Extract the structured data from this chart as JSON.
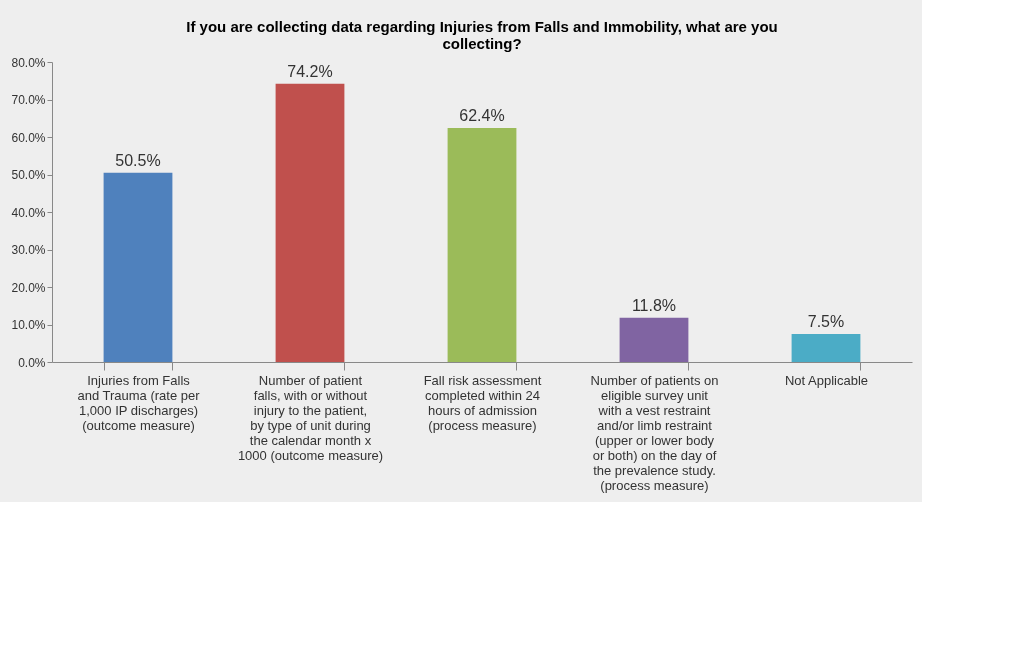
{
  "chart_data": {
    "type": "bar",
    "title": "If you are collecting data regarding Injuries from Falls and Immobility, what are you collecting?",
    "categories": [
      "Injuries from Falls and Trauma (rate per 1,000 IP discharges) (outcome measure)",
      "Number of patient falls, with or without injury to the patient, by type of unit during the calendar month x 1000 (outcome measure)",
      "Fall risk assessment completed within 24 hours of admission (process measure)",
      "Number of patients on eligible survey unit with a vest restraint and/or limb restraint (upper or lower body or both) on the day of the prevalence study. (process measure)",
      "Not Applicable"
    ],
    "values": [
      50.5,
      74.2,
      62.4,
      11.8,
      7.5
    ],
    "colors": [
      "#4f81bd",
      "#c0504d",
      "#9bbb59",
      "#8064a2",
      "#4bacc6"
    ],
    "value_labels": [
      "50.5%",
      "74.2%",
      "62.4%",
      "11.8%",
      "7.5%"
    ],
    "ylim": [
      0,
      80
    ],
    "yticks": [
      {
        "value": 0,
        "label": "0.0%"
      },
      {
        "value": 10,
        "label": "10.0%"
      },
      {
        "value": 20,
        "label": "20.0%"
      },
      {
        "value": 30,
        "label": "30.0%"
      },
      {
        "value": 40,
        "label": "40.0%"
      },
      {
        "value": 50,
        "label": "50.0%"
      },
      {
        "value": 60,
        "label": "60.0%"
      },
      {
        "value": 70,
        "label": "70.0%"
      },
      {
        "value": 80,
        "label": "80.0%"
      }
    ],
    "grid": false
  }
}
